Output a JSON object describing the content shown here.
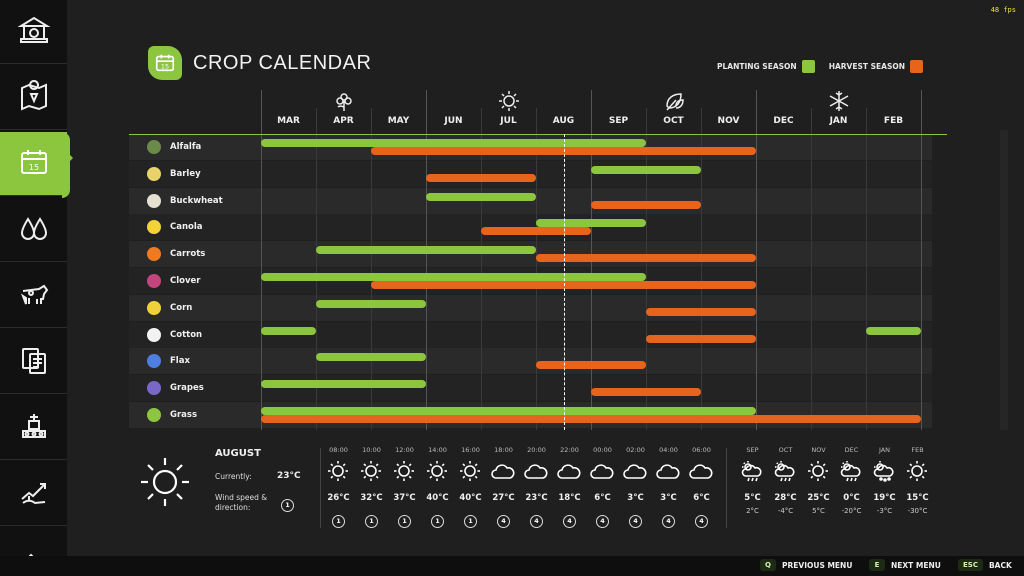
{
  "fps": "48 fps",
  "colors": {
    "accent": "#8cc63f",
    "planting": "#8cc63f",
    "harvest": "#e8641c"
  },
  "sidebar": {
    "items": [
      {
        "icon": "bank-icon"
      },
      {
        "icon": "map-icon"
      },
      {
        "icon": "calendar-icon",
        "active": true
      },
      {
        "icon": "water-drops-icon"
      },
      {
        "icon": "cow-icon"
      },
      {
        "icon": "documents-icon"
      },
      {
        "icon": "factory-icon"
      },
      {
        "icon": "finance-chart-icon"
      },
      {
        "icon": "more-icon"
      }
    ]
  },
  "title": {
    "text": "CROP CALENDAR",
    "icon_label": "15"
  },
  "legend": {
    "planting": "PLANTING SEASON",
    "harvest": "HARVEST SEASON"
  },
  "months": [
    "MAR",
    "APR",
    "MAY",
    "JUN",
    "JUL",
    "AUG",
    "SEP",
    "OCT",
    "NOV",
    "DEC",
    "JAN",
    "FEB"
  ],
  "current_month_index": 5,
  "seasons": [
    {
      "icon": "spring-flower-icon",
      "month_index": 1
    },
    {
      "icon": "summer-sun-icon",
      "month_index": 4
    },
    {
      "icon": "autumn-leaf-icon",
      "month_index": 7
    },
    {
      "icon": "winter-snowflake-icon",
      "month_index": 10
    }
  ],
  "crops": [
    {
      "name": "Alfalfa",
      "icon_color": "#6b8a4a",
      "planting": [
        [
          0,
          7
        ]
      ],
      "harvest": [
        [
          2,
          9
        ]
      ]
    },
    {
      "name": "Barley",
      "icon_color": "#e8d26a",
      "planting": [
        [
          6,
          8
        ]
      ],
      "harvest": [
        [
          3,
          5
        ]
      ]
    },
    {
      "name": "Buckwheat",
      "icon_color": "#e5e0cf",
      "planting": [
        [
          3,
          5
        ]
      ],
      "harvest": [
        [
          6,
          8
        ]
      ]
    },
    {
      "name": "Canola",
      "icon_color": "#f2d33a",
      "planting": [
        [
          5,
          7
        ]
      ],
      "harvest": [
        [
          4,
          6
        ]
      ]
    },
    {
      "name": "Carrots",
      "icon_color": "#ef7a22",
      "planting": [
        [
          1,
          5
        ]
      ],
      "harvest": [
        [
          5,
          9
        ]
      ]
    },
    {
      "name": "Clover",
      "icon_color": "#c4447d",
      "planting": [
        [
          0,
          7
        ]
      ],
      "harvest": [
        [
          2,
          9
        ]
      ]
    },
    {
      "name": "Corn",
      "icon_color": "#f1d13a",
      "planting": [
        [
          1,
          3
        ]
      ],
      "harvest": [
        [
          7,
          9
        ]
      ]
    },
    {
      "name": "Cotton",
      "icon_color": "#f2f2f2",
      "planting": [
        [
          0,
          1
        ],
        [
          11,
          12
        ]
      ],
      "harvest": [
        [
          7,
          9
        ]
      ]
    },
    {
      "name": "Flax",
      "icon_color": "#4d7ee0",
      "planting": [
        [
          1,
          3
        ]
      ],
      "harvest": [
        [
          5,
          7
        ]
      ]
    },
    {
      "name": "Grapes",
      "icon_color": "#7a68c8",
      "planting": [
        [
          0,
          3
        ]
      ],
      "harvest": [
        [
          6,
          8
        ]
      ]
    },
    {
      "name": "Grass",
      "icon_color": "#8cc63f",
      "planting": [
        [
          0,
          9
        ]
      ],
      "harvest": [
        [
          0,
          12
        ]
      ]
    }
  ],
  "weather": {
    "month": "AUGUST",
    "currently_label": "Currently:",
    "current_temp": "23°C",
    "wind_label": "Wind speed & direction:",
    "current_wind": "1",
    "hourly": [
      {
        "time": "08:00",
        "icon": "sun-icon",
        "temp": "26°C",
        "wind": "1"
      },
      {
        "time": "10:00",
        "icon": "sun-icon",
        "temp": "32°C",
        "wind": "1"
      },
      {
        "time": "12:00",
        "icon": "sun-icon",
        "temp": "37°C",
        "wind": "1"
      },
      {
        "time": "14:00",
        "icon": "sun-icon",
        "temp": "40°C",
        "wind": "1"
      },
      {
        "time": "16:00",
        "icon": "sun-icon",
        "temp": "40°C",
        "wind": "1"
      },
      {
        "time": "18:00",
        "icon": "cloud-icon",
        "temp": "27°C",
        "wind": "4"
      },
      {
        "time": "20:00",
        "icon": "cloud-icon",
        "temp": "23°C",
        "wind": "4"
      },
      {
        "time": "22:00",
        "icon": "cloud-icon",
        "temp": "18°C",
        "wind": "4"
      },
      {
        "time": "00:00",
        "icon": "cloud-icon",
        "temp": "6°C",
        "wind": "4"
      },
      {
        "time": "02:00",
        "icon": "cloud-icon",
        "temp": "3°C",
        "wind": "4"
      },
      {
        "time": "04:00",
        "icon": "cloud-icon",
        "temp": "3°C",
        "wind": "4"
      },
      {
        "time": "06:00",
        "icon": "cloud-icon",
        "temp": "6°C",
        "wind": "4"
      }
    ],
    "monthly": [
      {
        "month": "SEP",
        "icon": "sun-cloud-rain-icon",
        "high": "5°C",
        "low": "2°C"
      },
      {
        "month": "OCT",
        "icon": "sun-cloud-rain-icon",
        "high": "28°C",
        "low": "-4°C"
      },
      {
        "month": "NOV",
        "icon": "sun-icon",
        "high": "25°C",
        "low": "5°C"
      },
      {
        "month": "DEC",
        "icon": "sun-cloud-rain-icon",
        "high": "0°C",
        "low": "-20°C"
      },
      {
        "month": "JAN",
        "icon": "sun-cloud-hail-icon",
        "high": "19°C",
        "low": "-3°C"
      },
      {
        "month": "FEB",
        "icon": "sun-icon",
        "high": "15°C",
        "low": "-30°C"
      }
    ]
  },
  "footer": {
    "previous": {
      "key": "Q",
      "label": "PREVIOUS MENU"
    },
    "next": {
      "key": "E",
      "label": "NEXT MENU"
    },
    "back": {
      "key": "ESC",
      "label": "BACK"
    }
  }
}
